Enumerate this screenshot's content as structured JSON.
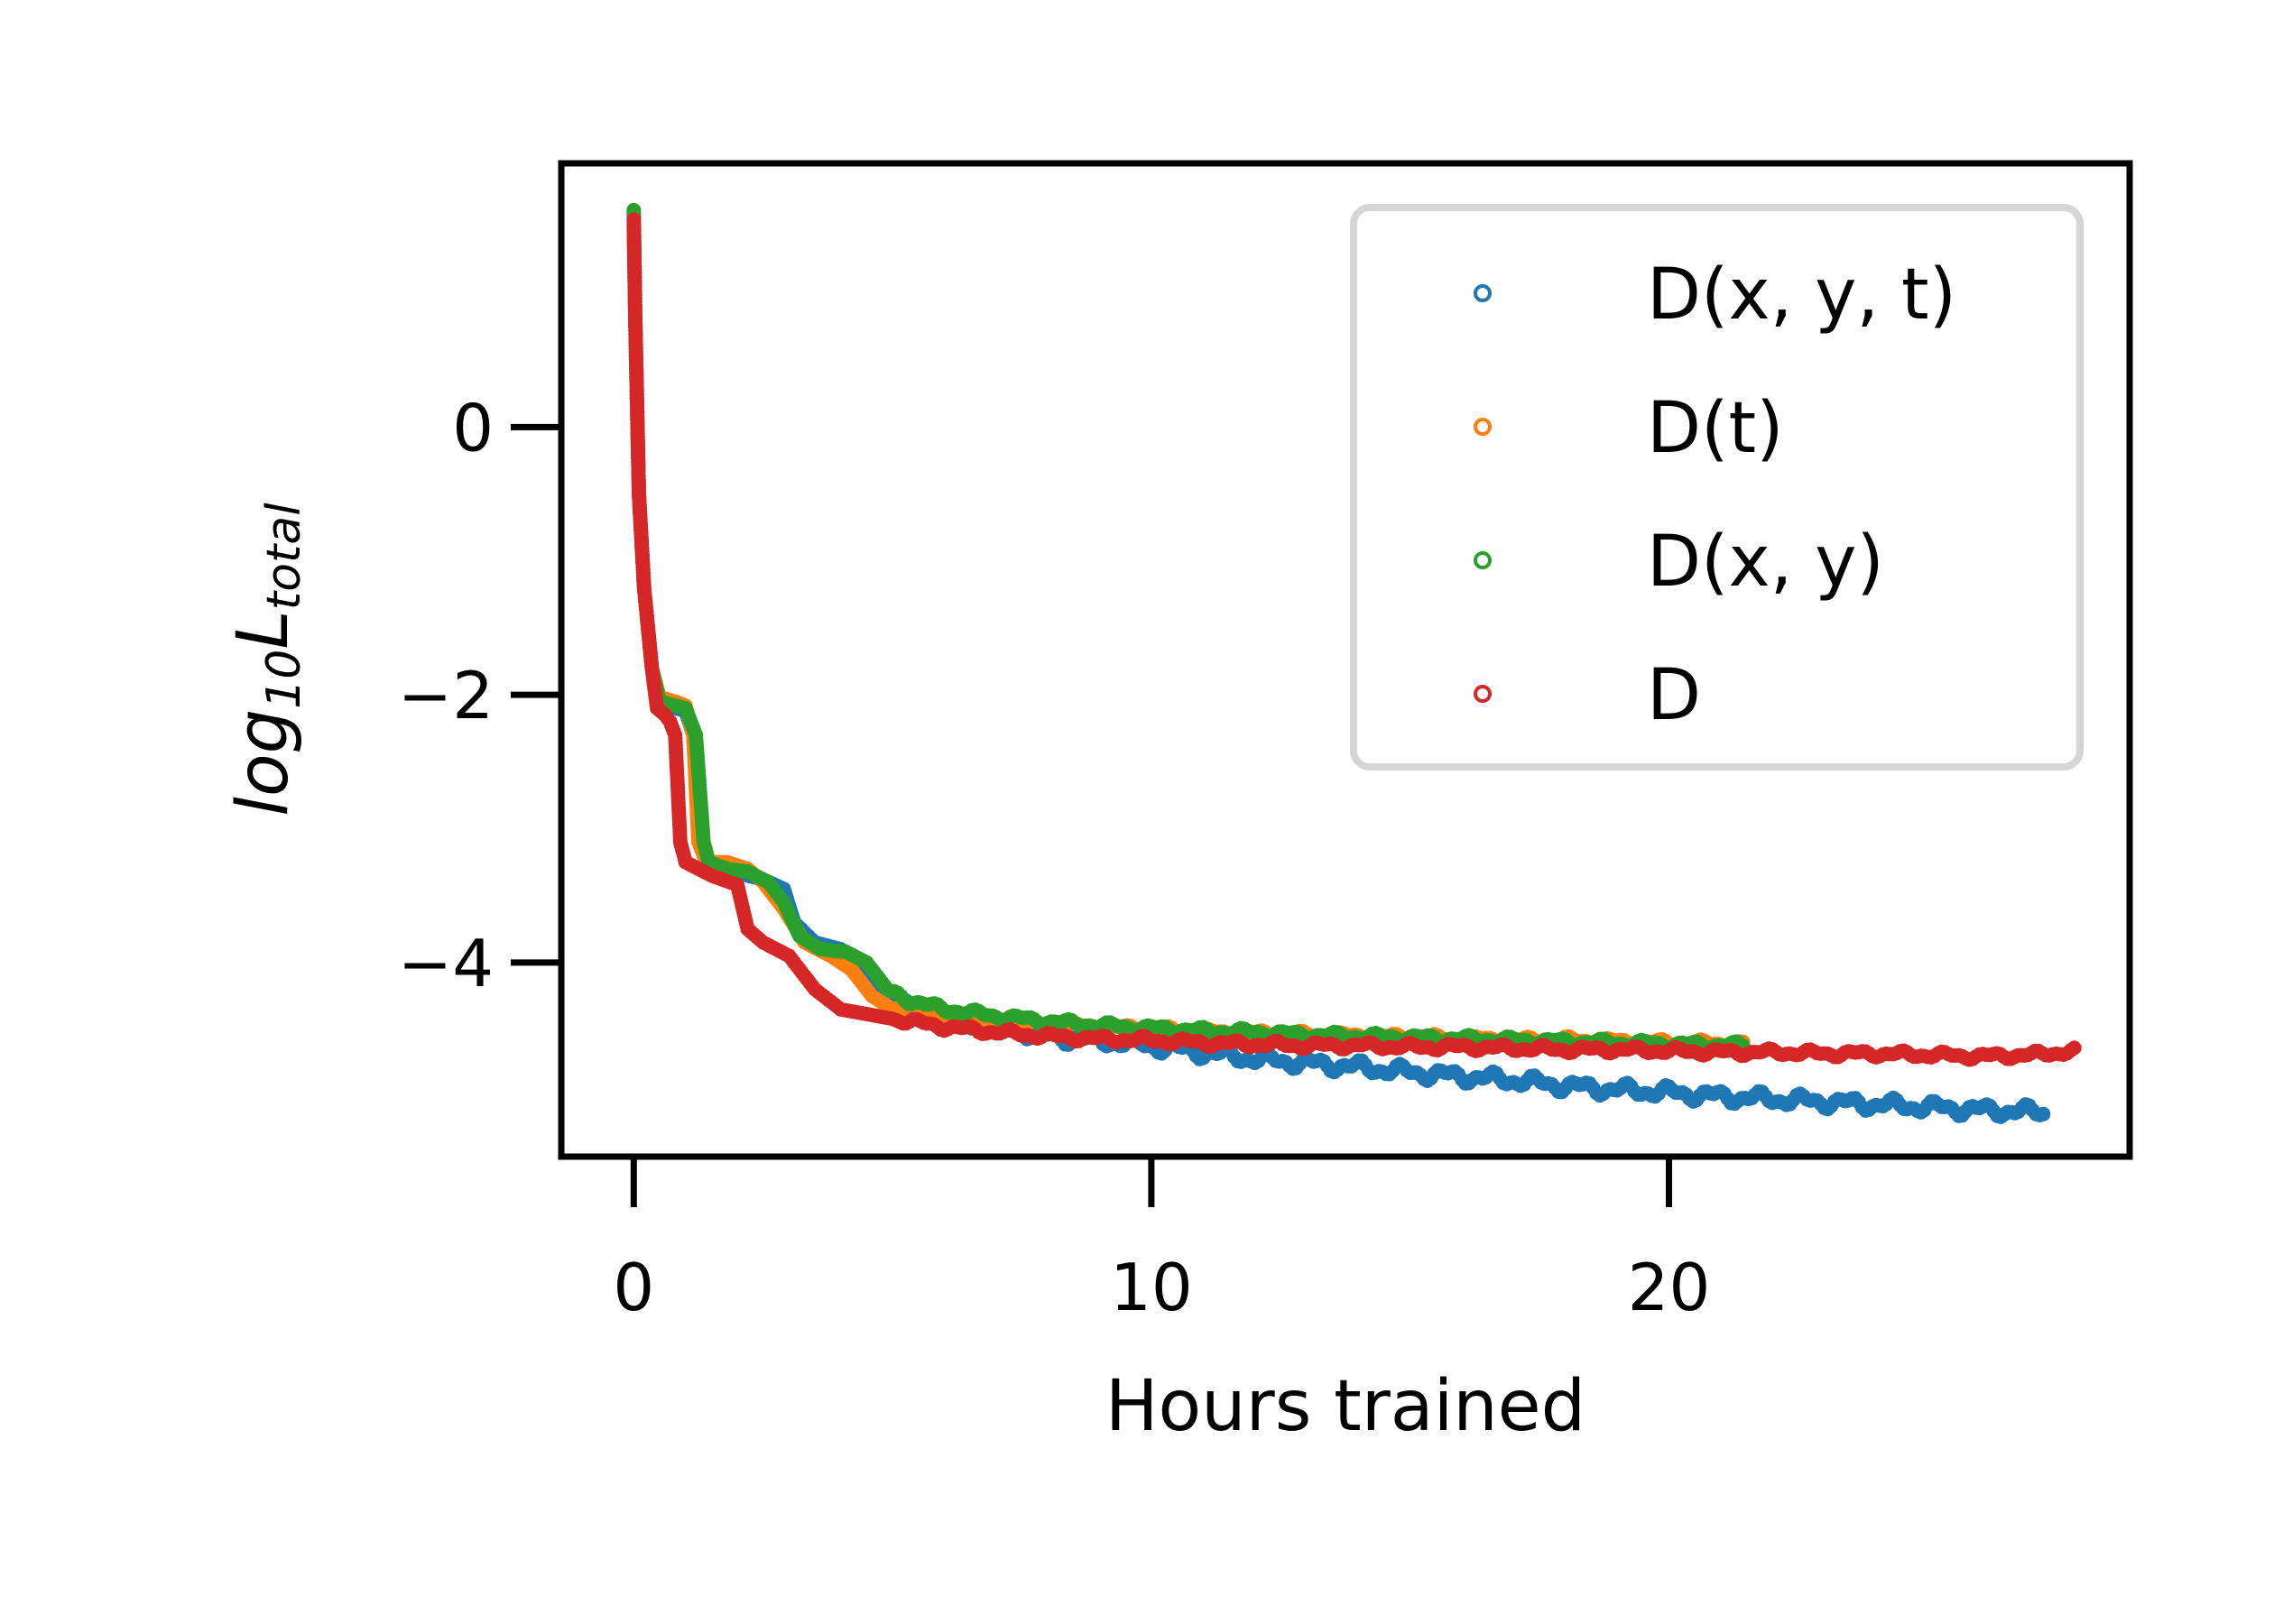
{
  "chart_data": {
    "type": "scatter",
    "xlabel": "Hours trained",
    "ylabel_base": "log",
    "ylabel_base_sub": "10",
    "ylabel_var": "L",
    "ylabel_sub": "total",
    "xlim": [
      -1.4,
      28.9
    ],
    "ylim": [
      -5.45,
      1.97
    ],
    "xticks": [
      {
        "value": 0,
        "label": "0"
      },
      {
        "value": 10,
        "label": "10"
      },
      {
        "value": 20,
        "label": "20"
      }
    ],
    "yticks": [
      {
        "value": 0,
        "label": "0"
      },
      {
        "value": -2,
        "label": "−2"
      },
      {
        "value": -4,
        "label": "−4"
      }
    ],
    "grid": false,
    "legend_position": "top-right",
    "series": [
      {
        "name": "D(x, y, t)",
        "color": "#1f77b4",
        "x_end": 27.3,
        "points": [
          [
            0,
            1.6
          ],
          [
            0.03,
            0.8
          ],
          [
            0.1,
            -0.5
          ],
          [
            0.2,
            -1.2
          ],
          [
            0.35,
            -1.8
          ],
          [
            0.5,
            -2.05
          ],
          [
            0.8,
            -2.1
          ],
          [
            1.0,
            -2.12
          ],
          [
            1.15,
            -2.3
          ],
          [
            1.3,
            -3.1
          ],
          [
            1.4,
            -3.25
          ],
          [
            1.8,
            -3.3
          ],
          [
            2.2,
            -3.35
          ],
          [
            2.5,
            -3.38
          ],
          [
            2.9,
            -3.45
          ],
          [
            3.1,
            -3.7
          ],
          [
            3.5,
            -3.85
          ],
          [
            4.0,
            -3.9
          ],
          [
            4.4,
            -4.0
          ],
          [
            4.8,
            -4.2
          ],
          [
            5.2,
            -4.32
          ],
          [
            6,
            -4.42
          ],
          [
            7,
            -4.48
          ],
          [
            8,
            -4.55
          ],
          [
            9,
            -4.58
          ],
          [
            10,
            -4.62
          ],
          [
            11,
            -4.67
          ],
          [
            12,
            -4.72
          ],
          [
            13,
            -4.75
          ],
          [
            14,
            -4.78
          ],
          [
            15,
            -4.82
          ],
          [
            16,
            -4.85
          ],
          [
            17,
            -4.88
          ],
          [
            18,
            -4.92
          ],
          [
            19,
            -4.95
          ],
          [
            20,
            -4.97
          ],
          [
            21,
            -5.0
          ],
          [
            22,
            -5.02
          ],
          [
            23,
            -5.04
          ],
          [
            24,
            -5.06
          ],
          [
            25,
            -5.08
          ],
          [
            26,
            -5.1
          ],
          [
            27.3,
            -5.12
          ]
        ]
      },
      {
        "name": "D(t)",
        "color": "#ff7f0e",
        "x_end": 21.5,
        "points": [
          [
            0,
            1.5
          ],
          [
            0.03,
            0.8
          ],
          [
            0.1,
            -0.5
          ],
          [
            0.2,
            -1.2
          ],
          [
            0.35,
            -1.8
          ],
          [
            0.5,
            -2.02
          ],
          [
            0.8,
            -2.05
          ],
          [
            1.0,
            -2.08
          ],
          [
            1.15,
            -2.3
          ],
          [
            1.25,
            -3.1
          ],
          [
            1.4,
            -3.25
          ],
          [
            1.8,
            -3.25
          ],
          [
            2.2,
            -3.3
          ],
          [
            2.5,
            -3.4
          ],
          [
            2.9,
            -3.6
          ],
          [
            3.3,
            -3.85
          ],
          [
            3.8,
            -3.95
          ],
          [
            4.2,
            -4.05
          ],
          [
            4.6,
            -4.25
          ],
          [
            5.0,
            -4.35
          ],
          [
            6,
            -4.42
          ],
          [
            7,
            -4.45
          ],
          [
            8,
            -4.47
          ],
          [
            9,
            -4.48
          ],
          [
            10,
            -4.5
          ],
          [
            11,
            -4.52
          ],
          [
            12,
            -4.53
          ],
          [
            13,
            -4.54
          ],
          [
            14,
            -4.55
          ],
          [
            15,
            -4.56
          ],
          [
            16,
            -4.57
          ],
          [
            17,
            -4.58
          ],
          [
            18,
            -4.58
          ],
          [
            19,
            -4.59
          ],
          [
            20,
            -4.6
          ],
          [
            21.5,
            -4.61
          ]
        ]
      },
      {
        "name": "D(x, y)",
        "color": "#2ca02c",
        "x_end": 21.5,
        "points": [
          [
            0,
            1.62
          ],
          [
            0.03,
            0.8
          ],
          [
            0.1,
            -0.5
          ],
          [
            0.2,
            -1.2
          ],
          [
            0.35,
            -1.8
          ],
          [
            0.5,
            -2.05
          ],
          [
            0.8,
            -2.08
          ],
          [
            1.0,
            -2.1
          ],
          [
            1.2,
            -2.3
          ],
          [
            1.35,
            -3.1
          ],
          [
            1.45,
            -3.25
          ],
          [
            1.8,
            -3.3
          ],
          [
            2.2,
            -3.32
          ],
          [
            2.6,
            -3.4
          ],
          [
            2.9,
            -3.55
          ],
          [
            3.2,
            -3.8
          ],
          [
            3.6,
            -3.9
          ],
          [
            4.1,
            -3.92
          ],
          [
            4.5,
            -4.0
          ],
          [
            4.9,
            -4.2
          ],
          [
            5.3,
            -4.28
          ],
          [
            6,
            -4.35
          ],
          [
            7,
            -4.4
          ],
          [
            8,
            -4.44
          ],
          [
            9,
            -4.47
          ],
          [
            10,
            -4.49
          ],
          [
            11,
            -4.51
          ],
          [
            12,
            -4.52
          ],
          [
            13,
            -4.54
          ],
          [
            14,
            -4.55
          ],
          [
            15,
            -4.56
          ],
          [
            16,
            -4.57
          ],
          [
            17,
            -4.58
          ],
          [
            18,
            -4.59
          ],
          [
            19,
            -4.6
          ],
          [
            20,
            -4.61
          ],
          [
            21.5,
            -4.62
          ]
        ]
      },
      {
        "name": "D",
        "color": "#d62728",
        "x_end": 27.9,
        "points": [
          [
            0,
            1.55
          ],
          [
            0.03,
            0.8
          ],
          [
            0.1,
            -0.5
          ],
          [
            0.2,
            -1.2
          ],
          [
            0.35,
            -1.8
          ],
          [
            0.45,
            -2.1
          ],
          [
            0.6,
            -2.15
          ],
          [
            0.7,
            -2.2
          ],
          [
            0.8,
            -2.3
          ],
          [
            0.9,
            -3.1
          ],
          [
            1.0,
            -3.25
          ],
          [
            1.5,
            -3.35
          ],
          [
            2.0,
            -3.42
          ],
          [
            2.2,
            -3.75
          ],
          [
            2.5,
            -3.85
          ],
          [
            3.0,
            -3.95
          ],
          [
            3.5,
            -4.2
          ],
          [
            4.0,
            -4.35
          ],
          [
            5,
            -4.42
          ],
          [
            6,
            -4.48
          ],
          [
            7,
            -4.52
          ],
          [
            8,
            -4.55
          ],
          [
            9,
            -4.57
          ],
          [
            10,
            -4.58
          ],
          [
            11,
            -4.6
          ],
          [
            12,
            -4.61
          ],
          [
            13,
            -4.62
          ],
          [
            14,
            -4.62
          ],
          [
            15,
            -4.63
          ],
          [
            16,
            -4.63
          ],
          [
            17,
            -4.64
          ],
          [
            18,
            -4.65
          ],
          [
            19,
            -4.65
          ],
          [
            20,
            -4.66
          ],
          [
            21,
            -4.67
          ],
          [
            22,
            -4.67
          ],
          [
            23,
            -4.68
          ],
          [
            24,
            -4.68
          ],
          [
            25,
            -4.69
          ],
          [
            26,
            -4.7
          ],
          [
            27,
            -4.69
          ],
          [
            27.9,
            -4.66
          ]
        ]
      }
    ]
  }
}
